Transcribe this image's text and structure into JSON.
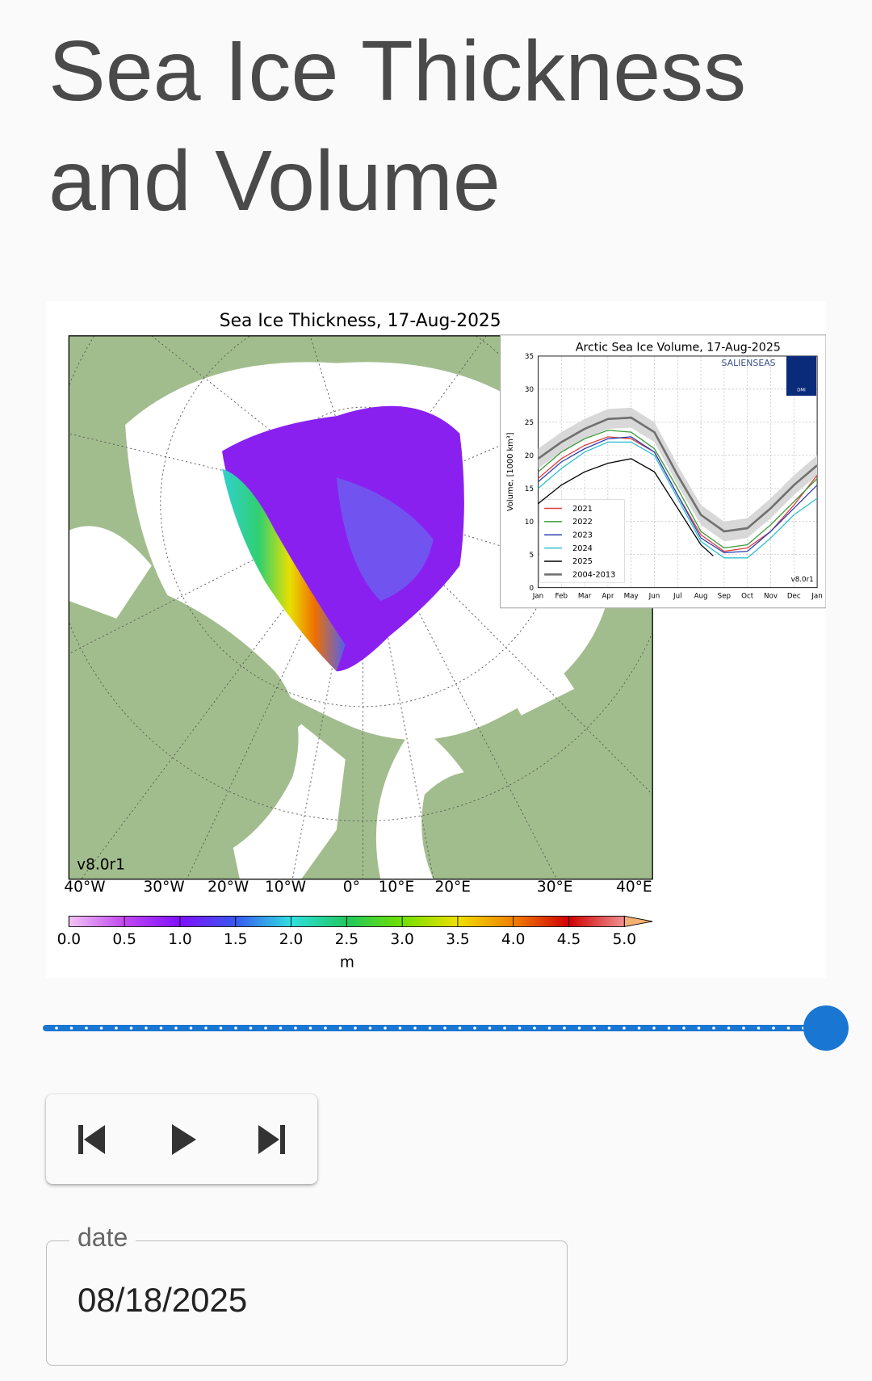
{
  "page": {
    "title": "Sea Ice Thickness and Volume",
    "date_label": "date",
    "date_value": "08/18/2025"
  },
  "map": {
    "title": "Sea Ice Thickness, 17-Aug-2025",
    "version": "v8.0r1",
    "longitude_labels": [
      "40°W",
      "30°W",
      "20°W",
      "10°W",
      "0°",
      "10°E",
      "20°E",
      "30°E",
      "40°E"
    ],
    "colorbar": {
      "label": "m",
      "lim": [
        0,
        5
      ],
      "ticks": [
        {
          "value": 0,
          "label": "0.0"
        },
        {
          "value": 0.5,
          "label": "0.5"
        },
        {
          "value": 1,
          "label": "1.0"
        },
        {
          "value": 1.5,
          "label": "1.5"
        },
        {
          "value": 2,
          "label": "2.0"
        },
        {
          "value": 2.5,
          "label": "2.5"
        },
        {
          "value": 3,
          "label": "3.0"
        },
        {
          "value": 3.5,
          "label": "3.5"
        },
        {
          "value": 4,
          "label": "4.0"
        },
        {
          "value": 4.5,
          "label": "4.5"
        },
        {
          "value": 5,
          "label": "5.0"
        }
      ]
    }
  },
  "chart_data": {
    "type": "line",
    "title": "Arctic Sea Ice Volume, 17-Aug-2025",
    "y_label": "Volume, [1000 km³]",
    "logo": "SALIENSEAS",
    "badge": "DMI",
    "version": "v8.0r1",
    "grid": true,
    "xlim": [
      0,
      12
    ],
    "ylim": [
      0,
      35
    ],
    "xticks": [
      {
        "value": 0,
        "label": "Jan"
      },
      {
        "value": 1,
        "label": "Feb"
      },
      {
        "value": 2,
        "label": "Mar"
      },
      {
        "value": 3,
        "label": "Apr"
      },
      {
        "value": 4,
        "label": "May"
      },
      {
        "value": 5,
        "label": "Jun"
      },
      {
        "value": 6,
        "label": "Jul"
      },
      {
        "value": 7,
        "label": "Aug"
      },
      {
        "value": 8,
        "label": "Sep"
      },
      {
        "value": 9,
        "label": "Oct"
      },
      {
        "value": 10,
        "label": "Nov"
      },
      {
        "value": 11,
        "label": "Dec"
      },
      {
        "value": 12,
        "label": "Jan"
      }
    ],
    "yticks": [
      0,
      5,
      10,
      15,
      20,
      25,
      30,
      35
    ],
    "x": [
      0,
      1,
      2,
      3,
      4,
      5,
      6,
      7,
      8,
      9,
      10,
      11,
      12
    ],
    "series": [
      {
        "name": "2021",
        "color": "#e04040",
        "values": [
          16.5,
          19.5,
          21.5,
          22.8,
          22.5,
          20.5,
          14,
          8,
          5.5,
          6,
          8.5,
          12.5,
          17
        ]
      },
      {
        "name": "2022",
        "color": "#3a9a3a",
        "values": [
          17.5,
          20.5,
          22.5,
          23.8,
          23.5,
          21,
          15,
          8.5,
          6,
          6.5,
          9.5,
          13,
          16.5
        ]
      },
      {
        "name": "2023",
        "color": "#3040b0",
        "values": [
          16,
          19,
          21,
          22.5,
          22.8,
          20.5,
          14,
          7.5,
          5.3,
          5.5,
          8.5,
          12,
          15.5
        ]
      },
      {
        "name": "2024",
        "color": "#30c0d0",
        "values": [
          15,
          18,
          20.5,
          22,
          22,
          20,
          13.5,
          7,
          4.5,
          4.5,
          7.5,
          11,
          13.5
        ]
      },
      {
        "name": "2025",
        "color": "#000000",
        "x": [
          0,
          1,
          2,
          3,
          4,
          5,
          6,
          7,
          7.53
        ],
        "values": [
          12.7,
          15.5,
          17.5,
          18.8,
          19.5,
          17.5,
          12,
          6.5,
          4.8
        ]
      },
      {
        "name": "2004-2013",
        "color": "#707070",
        "values": [
          19.5,
          22,
          24,
          25.5,
          25.7,
          23.5,
          17,
          11,
          8.5,
          9,
          12,
          15.5,
          18.5
        ],
        "band_lower": [
          18,
          20.5,
          22.5,
          24,
          24.2,
          22,
          15.5,
          9.5,
          7,
          7.5,
          10.5,
          14,
          17
        ],
        "band_upper": [
          21,
          23.5,
          25.5,
          27,
          27.2,
          25,
          18.5,
          12.5,
          10,
          10.5,
          13.5,
          17,
          20
        ]
      }
    ]
  }
}
